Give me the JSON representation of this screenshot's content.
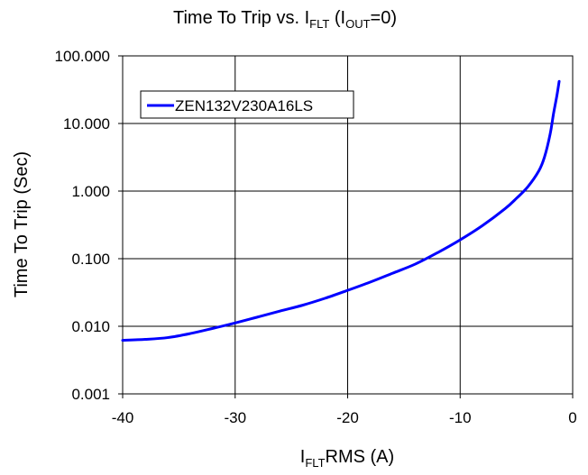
{
  "chart_data": {
    "type": "line",
    "title": {
      "prefix": "Time To Trip vs. I",
      "sub1": "FLT",
      "mid": " (I",
      "sub2": "OUT",
      "suffix": "=0)"
    },
    "xlabel": {
      "base": "I",
      "sub": "FLT",
      "rest": "RMS (A)"
    },
    "ylabel": "Time To Trip (Sec)",
    "xlim": [
      -40,
      0
    ],
    "ylim": [
      0.001,
      100
    ],
    "yscale": "log",
    "grid": true,
    "legend_position": "top-left",
    "x_ticks": [
      {
        "value": -40,
        "label": "-40"
      },
      {
        "value": -30,
        "label": "-30"
      },
      {
        "value": -20,
        "label": "-20"
      },
      {
        "value": -10,
        "label": "-10"
      },
      {
        "value": 0,
        "label": "0"
      }
    ],
    "y_ticks": [
      {
        "value": 0.001,
        "label": "0.001"
      },
      {
        "value": 0.01,
        "label": "0.010"
      },
      {
        "value": 0.1,
        "label": "0.100"
      },
      {
        "value": 1,
        "label": "1.000"
      },
      {
        "value": 10,
        "label": "10.000"
      },
      {
        "value": 100,
        "label": "100.000"
      }
    ],
    "series": [
      {
        "name": "ZEN132V230A16LS",
        "color": "#0000ff",
        "points": [
          {
            "x": -40,
            "y": 0.0062
          },
          {
            "x": -38,
            "y": 0.0064
          },
          {
            "x": -36,
            "y": 0.0068
          },
          {
            "x": -34,
            "y": 0.0078
          },
          {
            "x": -32,
            "y": 0.0093
          },
          {
            "x": -30,
            "y": 0.0112
          },
          {
            "x": -28,
            "y": 0.0137
          },
          {
            "x": -26,
            "y": 0.0168
          },
          {
            "x": -24,
            "y": 0.0205
          },
          {
            "x": -22,
            "y": 0.026
          },
          {
            "x": -20,
            "y": 0.034
          },
          {
            "x": -18,
            "y": 0.045
          },
          {
            "x": -16,
            "y": 0.061
          },
          {
            "x": -14,
            "y": 0.083
          },
          {
            "x": -12,
            "y": 0.123
          },
          {
            "x": -10,
            "y": 0.19
          },
          {
            "x": -8,
            "y": 0.31
          },
          {
            "x": -6,
            "y": 0.55
          },
          {
            "x": -5,
            "y": 0.78
          },
          {
            "x": -4,
            "y": 1.15
          },
          {
            "x": -3,
            "y": 2.0
          },
          {
            "x": -2.5,
            "y": 3.2
          },
          {
            "x": -2,
            "y": 7.0
          },
          {
            "x": -1.7,
            "y": 14.0
          },
          {
            "x": -1.4,
            "y": 26.0
          },
          {
            "x": -1.2,
            "y": 42.0
          }
        ]
      }
    ]
  }
}
